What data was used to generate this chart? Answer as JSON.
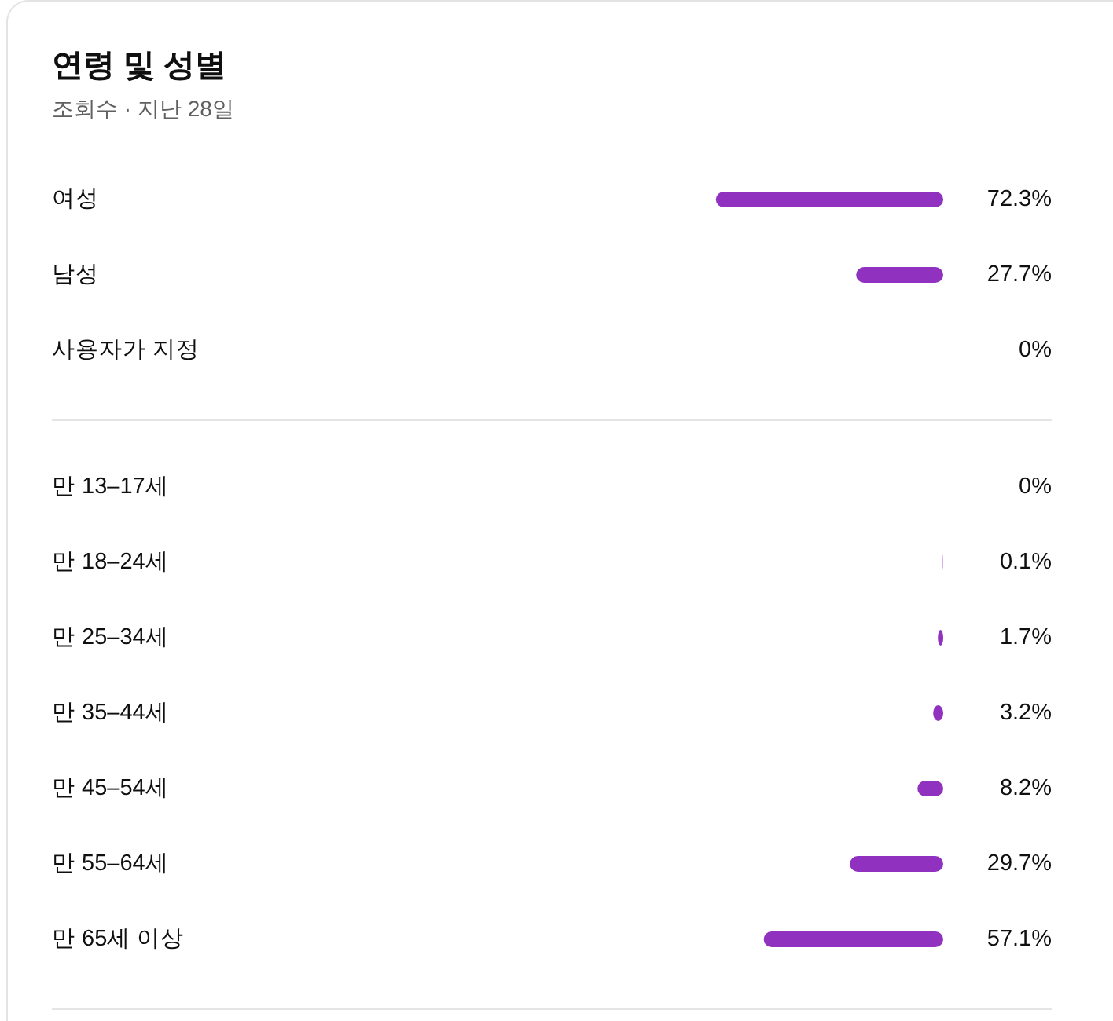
{
  "chart_data": [
    {
      "type": "bar",
      "orientation": "horizontal",
      "title": "연령 및 성별",
      "subtitle": "조회수 · 지난 28일",
      "categories": [
        "여성",
        "남성",
        "사용자가 지정"
      ],
      "values": [
        72.3,
        27.7,
        0
      ],
      "value_labels": [
        "72.3%",
        "27.7%",
        "0%"
      ],
      "color": "#9131c0"
    },
    {
      "type": "bar",
      "orientation": "horizontal",
      "categories": [
        "만 13–17세",
        "만 18–24세",
        "만 25–34세",
        "만 35–44세",
        "만 45–54세",
        "만 55–64세",
        "만 65세 이상"
      ],
      "values": [
        0,
        0.1,
        1.7,
        3.2,
        8.2,
        29.7,
        57.1
      ],
      "value_labels": [
        "0%",
        "0.1%",
        "1.7%",
        "3.2%",
        "8.2%",
        "29.7%",
        "57.1%"
      ],
      "color": "#9131c0"
    }
  ]
}
